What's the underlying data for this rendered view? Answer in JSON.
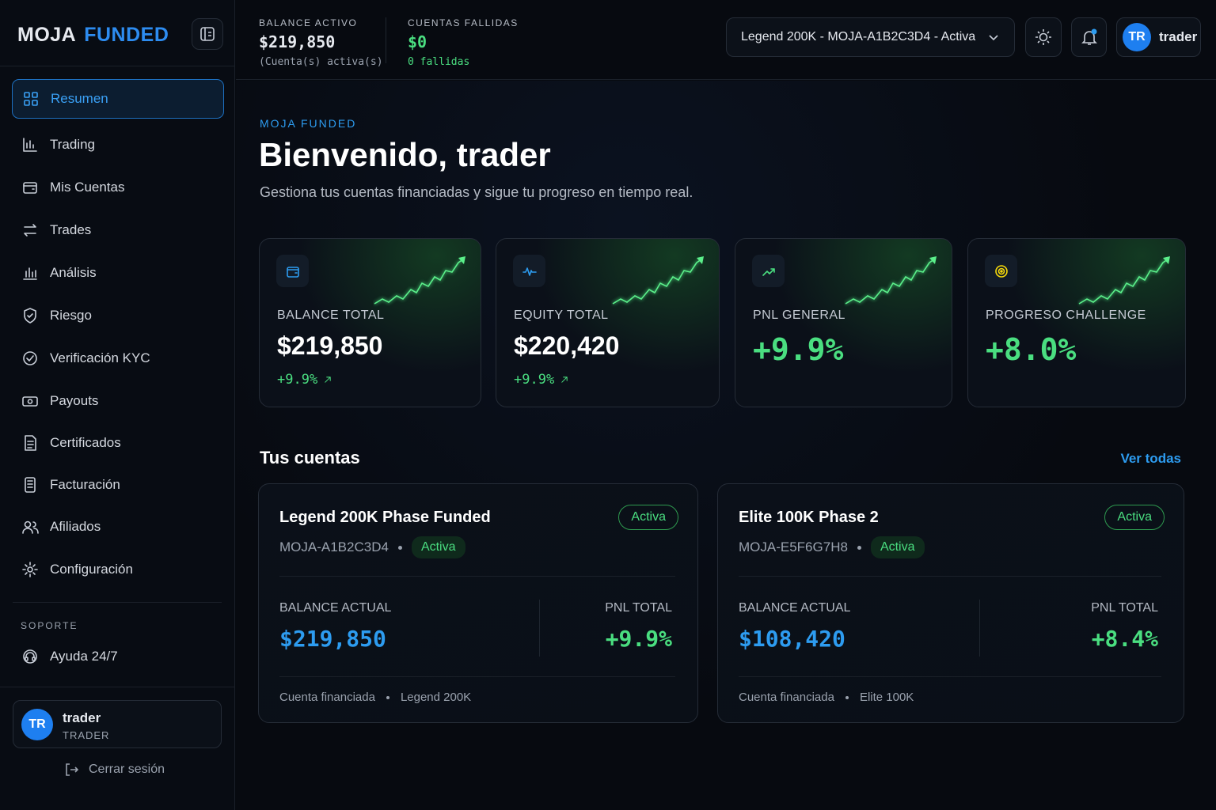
{
  "brand": {
    "part1": "MOJA",
    "part2": "FUNDED"
  },
  "topbar": {
    "stats": [
      {
        "label": "BALANCE ACTIVO",
        "value": "$219,850",
        "note": "(Cuenta(s) activa(s)"
      },
      {
        "label": "CUENTAS FALLIDAS",
        "value": "$0",
        "note": "0 fallidas"
      }
    ],
    "account_select": "Legend 200K - MOJA-A1B2C3D4 - Activa",
    "user": {
      "initials": "TR",
      "name": "trader"
    }
  },
  "sidebar": {
    "nav": [
      "Resumen",
      "Trading",
      "Mis Cuentas",
      "Trades",
      "Análisis",
      "Riesgo",
      "Verificación KYC",
      "Payouts",
      "Certificados",
      "Facturación",
      "Afiliados",
      "Configuración"
    ],
    "support_label": "SOPORTE",
    "support_items": [
      "Ayuda 24/7"
    ],
    "user": {
      "initials": "TR",
      "name": "trader",
      "role": "TRADER"
    },
    "logout": "Cerrar sesión"
  },
  "main": {
    "eyebrow": "MOJA FUNDED",
    "title": "Bienvenido, trader",
    "subtitle": "Gestiona tus cuentas financiadas y sigue tu progreso en tiempo real.",
    "kpis": [
      {
        "label": "BALANCE TOTAL",
        "value": "$219,850",
        "change": "+9.9%"
      },
      {
        "label": "EQUITY TOTAL",
        "value": "$220,420",
        "change": "+9.9%"
      },
      {
        "label": "PNL GENERAL",
        "value": "+9.9%"
      },
      {
        "label": "PROGRESO CHALLENGE",
        "value": "+8.0%"
      }
    ],
    "accounts_title": "Tus cuentas",
    "view_all": "Ver todas",
    "accounts": [
      {
        "name": "Legend 200K Phase Funded",
        "status": "Activa",
        "id": "MOJA-A1B2C3D4",
        "badge": "Activa",
        "balance_label": "BALANCE ACTUAL",
        "balance": "$219,850",
        "pnl_label": "PNL TOTAL",
        "pnl": "+9.9%",
        "type": "Cuenta financiada",
        "plan": "Legend 200K"
      },
      {
        "name": "Elite 100K Phase 2",
        "status": "Activa",
        "id": "MOJA-E5F6G7H8",
        "badge": "Activa",
        "balance_label": "BALANCE ACTUAL",
        "balance": "$108,420",
        "pnl_label": "PNL TOTAL",
        "pnl": "+8.4%",
        "type": "Cuenta financiada",
        "plan": "Elite 100K"
      }
    ]
  }
}
